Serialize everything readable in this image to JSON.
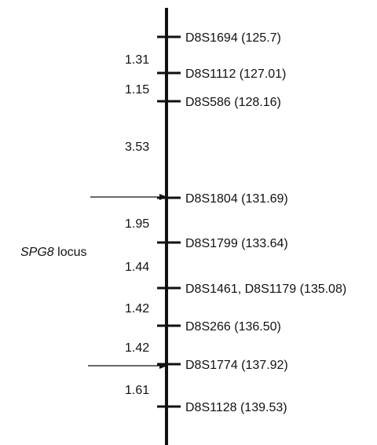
{
  "diagram": {
    "markers": [
      {
        "label": "D8S1694 (125.7)",
        "position_cM": 125.7
      },
      {
        "label": "D8S1112 (127.01)",
        "position_cM": 127.01
      },
      {
        "label": "D8S586 (128.16)",
        "position_cM": 128.16
      },
      {
        "label": "D8S1804 (131.69)",
        "position_cM": 131.69
      },
      {
        "label": "D8S1799 (133.64)",
        "position_cM": 133.64
      },
      {
        "label": "D8S1461, D8S1179 (135.08)",
        "position_cM": 135.08
      },
      {
        "label": "D8S266 (136.50)",
        "position_cM": 136.5
      },
      {
        "label": "D8S1774 (137.92)",
        "position_cM": 137.92
      },
      {
        "label": "D8S1128 (139.53)",
        "position_cM": 139.53
      }
    ],
    "intervals": [
      "1.31",
      "1.15",
      "3.53",
      "1.95",
      "1.44",
      "1.42",
      "1.42",
      "1.61"
    ],
    "locus": {
      "name": "SPG8",
      "suffix": " locus",
      "flanking_markers": [
        "D8S1804",
        "D8S1774"
      ]
    }
  }
}
